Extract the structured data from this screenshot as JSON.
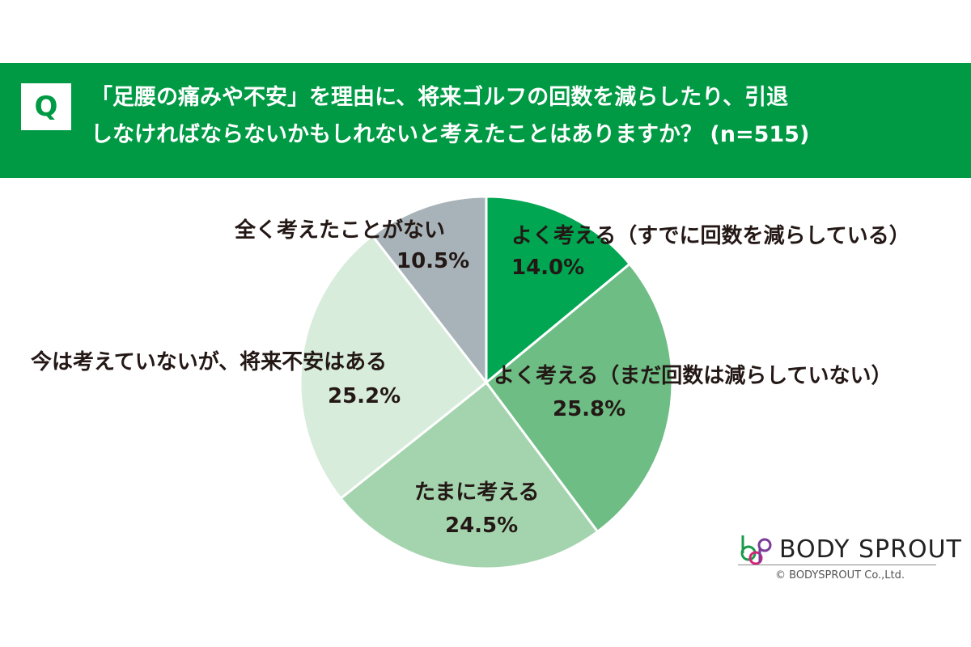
{
  "header": {
    "q_label": "Q",
    "line1": "「足腰の痛みや不安」を理由に、将来ゴルフの回数を減らしたり、引退",
    "line2": "しなければならないかもしれないと考えたことはありますか？ (n=515)"
  },
  "chart_data": {
    "type": "pie",
    "title": "「足腰の痛みや不安」を理由に、将来ゴルフの回数を減らしたり、引退しなければならないかもしれないと考えたことはありますか？ (n=515)",
    "start": "top",
    "direction": "clockwise",
    "slices": [
      {
        "label": "よく考える（すでに回数を減らしている）",
        "value": 14.0,
        "value_label": "14.0%",
        "color": "#00a651"
      },
      {
        "label": "よく考える（まだ回数は減らしていない）",
        "value": 25.8,
        "value_label": "25.8%",
        "color": "#6dbd84"
      },
      {
        "label": "たまに考える",
        "value": 24.5,
        "value_label": "24.5%",
        "color": "#a4d4ae"
      },
      {
        "label": "今は考えていないが、将来不安はある",
        "value": 25.2,
        "value_label": "25.2%",
        "color": "#d7ecda"
      },
      {
        "label": "全く考えたことがない",
        "value": 10.5,
        "value_label": "10.5%",
        "color": "#a7b3b9"
      }
    ]
  },
  "brand": {
    "name": "BODY SPROUT",
    "copyright": "© BODYSPROUT Co.,Ltd."
  }
}
